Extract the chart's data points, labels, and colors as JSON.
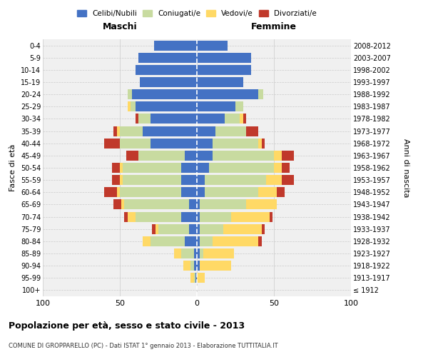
{
  "age_groups": [
    "100+",
    "95-99",
    "90-94",
    "85-89",
    "80-84",
    "75-79",
    "70-74",
    "65-69",
    "60-64",
    "55-59",
    "50-54",
    "45-49",
    "40-44",
    "35-39",
    "30-34",
    "25-29",
    "20-24",
    "15-19",
    "10-14",
    "5-9",
    "0-4"
  ],
  "birth_years": [
    "≤ 1912",
    "1913-1917",
    "1918-1922",
    "1923-1927",
    "1928-1932",
    "1933-1937",
    "1938-1942",
    "1943-1947",
    "1948-1952",
    "1953-1957",
    "1958-1962",
    "1963-1967",
    "1968-1972",
    "1973-1977",
    "1978-1982",
    "1983-1987",
    "1988-1992",
    "1993-1997",
    "1998-2002",
    "2003-2007",
    "2008-2012"
  ],
  "maschi": {
    "celibi": [
      0,
      1,
      2,
      2,
      8,
      5,
      10,
      5,
      10,
      10,
      10,
      8,
      30,
      35,
      30,
      40,
      42,
      37,
      40,
      38,
      28
    ],
    "coniugati": [
      0,
      1,
      2,
      8,
      22,
      20,
      30,
      42,
      40,
      38,
      38,
      30,
      20,
      15,
      8,
      3,
      3,
      0,
      0,
      0,
      0
    ],
    "vedovi": [
      0,
      2,
      5,
      5,
      5,
      2,
      5,
      2,
      2,
      2,
      2,
      0,
      0,
      2,
      0,
      2,
      0,
      0,
      0,
      0,
      0
    ],
    "divorziati": [
      0,
      0,
      0,
      0,
      0,
      2,
      2,
      5,
      8,
      5,
      5,
      8,
      10,
      2,
      2,
      0,
      0,
      0,
      0,
      0,
      0
    ]
  },
  "femmine": {
    "nubili": [
      0,
      0,
      2,
      2,
      2,
      2,
      2,
      2,
      5,
      5,
      8,
      10,
      10,
      12,
      18,
      25,
      40,
      30,
      35,
      35,
      20
    ],
    "coniugate": [
      0,
      0,
      0,
      2,
      8,
      15,
      20,
      30,
      35,
      40,
      42,
      40,
      30,
      20,
      10,
      5,
      3,
      0,
      0,
      0,
      0
    ],
    "vedove": [
      0,
      5,
      20,
      20,
      30,
      25,
      25,
      20,
      12,
      10,
      5,
      5,
      2,
      0,
      2,
      0,
      0,
      0,
      0,
      0,
      0
    ],
    "divorziate": [
      0,
      0,
      0,
      0,
      2,
      2,
      2,
      0,
      5,
      8,
      5,
      8,
      2,
      8,
      2,
      0,
      0,
      0,
      0,
      0,
      0
    ]
  },
  "colors": {
    "celibi": "#4472c4",
    "coniugati": "#c8dba0",
    "vedovi": "#ffd966",
    "divorziati": "#c0392b"
  },
  "xlim": 100,
  "title": "Popolazione per età, sesso e stato civile - 2013",
  "subtitle": "COMUNE DI GROPPARELLO (PC) - Dati ISTAT 1° gennaio 2013 - Elaborazione TUTTITALIA.IT",
  "ylabel": "Fasce di età",
  "ylabel_right": "Anni di nascita",
  "legend_labels": [
    "Celibi/Nubili",
    "Coniugati/e",
    "Vedovi/e",
    "Divorziati/e"
  ],
  "bg_color": "#ffffff",
  "plot_bg": "#f0f0f0",
  "grid_color": "#cccccc"
}
